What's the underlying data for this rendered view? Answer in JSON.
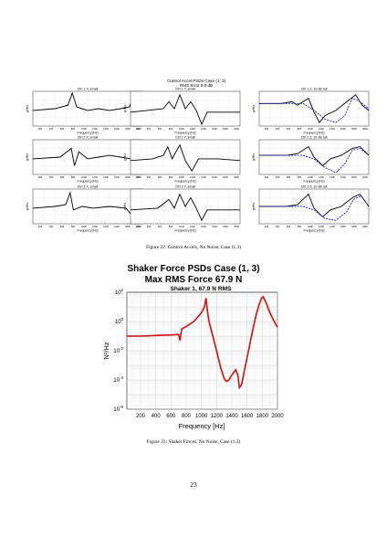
{
  "figure22": {
    "title_line1": "Control Accel PSDs Case (1, 3)",
    "title_line2": "RMS Error 9.6 dB",
    "caption": "Figure 22: Control Accels, No Noise, Case (1,3)",
    "xlabel": "Frequency [Hz]",
    "ylabel": "g²/Hz",
    "x_ticks": [
      "200",
      "400",
      "600",
      "800",
      "1000",
      "1200",
      "1400",
      "1600",
      "1800",
      "2000"
    ],
    "panels": [
      {
        "label": "Ctrl 1 X, small"
      },
      {
        "label": "Ctrl 1 Y, small"
      },
      {
        "label": "Ctrl 1 Z, 10 dB tall"
      },
      {
        "label": "Ctrl 2 X, small"
      },
      {
        "label": "Ctrl 2 Y, small"
      },
      {
        "label": "Ctrl 2 Z, 10 dB tall"
      },
      {
        "label": "Ctrl 3 X, small"
      },
      {
        "label": "Ctrl 3 Y, small"
      },
      {
        "label": "Ctrl 3 Z, 10 dB tall"
      }
    ]
  },
  "figure23": {
    "title_line1": "Shaker Force PSDs Case (1, 3)",
    "title_line2": "Max RMS Force 67.9 N",
    "subtitle": "Shaker 1, 67.9 N RMS",
    "caption": "Figure 23: Shaker Forces, No Noise, Case (1,3)"
  },
  "chart_data": {
    "type": "line",
    "title": "Shaker Force PSDs Case (1, 3)",
    "subtitle": "Max RMS Force 67.9 N",
    "panel_title": "Shaker 1, 67.9 N RMS",
    "xlabel": "Frequency [Hz]",
    "ylabel": "N²/Hz",
    "xlim": [
      20,
      2000
    ],
    "ylim": [
      1e-06,
      100
    ],
    "y_scale": "log",
    "grid": true,
    "x_ticks": [
      200,
      400,
      600,
      800,
      1000,
      1200,
      1400,
      1600,
      1800,
      2000
    ],
    "y_ticks": [
      {
        "value": 1e-06,
        "base": "10",
        "exp": "-6"
      },
      {
        "value": 0.0001,
        "base": "10",
        "exp": "-4"
      },
      {
        "value": 0.01,
        "base": "10",
        "exp": "-2"
      },
      {
        "value": 1,
        "base": "10",
        "exp": "0"
      },
      {
        "value": 100,
        "base": "10",
        "exp": "2"
      }
    ],
    "series_color": "#cc1111",
    "x": [
      20,
      200,
      400,
      600,
      700,
      720,
      740,
      760,
      800,
      900,
      1000,
      1040,
      1060,
      1080,
      1100,
      1150,
      1200,
      1250,
      1300,
      1330,
      1360,
      1390,
      1420,
      1450,
      1480,
      1500,
      1530,
      1570,
      1620,
      1670,
      1720,
      1760,
      1790,
      1810,
      1850,
      1900,
      1950,
      2000
    ],
    "y": [
      0.1,
      0.1,
      0.11,
      0.12,
      0.13,
      0.05,
      0.3,
      0.35,
      0.45,
      1.0,
      4.0,
      10,
      40,
      5,
      1.0,
      0.1,
      0.01,
      0.0008,
      0.00012,
      8e-05,
      0.0001,
      0.00018,
      0.0003,
      0.0005,
      0.0002,
      3e-05,
      5e-05,
      0.0006,
      0.01,
      0.2,
      3,
      15,
      40,
      50,
      20,
      4,
      1.2,
      0.4
    ]
  },
  "page_number": "23"
}
